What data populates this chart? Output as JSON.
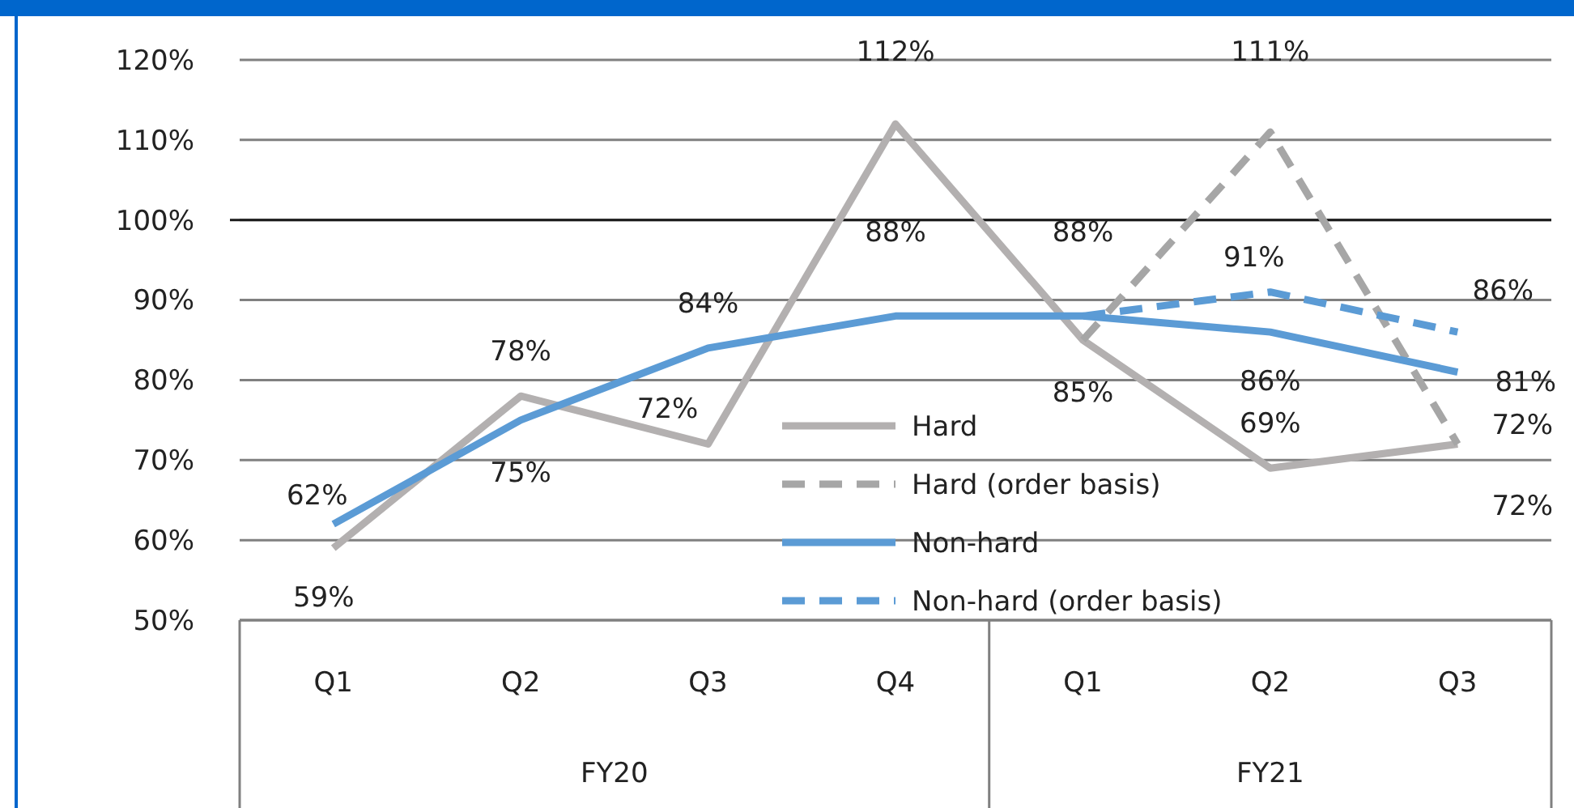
{
  "chart_data": {
    "type": "line",
    "categories": [
      "Q1",
      "Q2",
      "Q3",
      "Q4",
      "Q1",
      "Q2",
      "Q3"
    ],
    "annotations": [
      "FY20",
      "FY21"
    ],
    "ylim": [
      50,
      120
    ],
    "yticks": [
      {
        "value": 50,
        "label": "50%"
      },
      {
        "value": 60,
        "label": "60%"
      },
      {
        "value": 70,
        "label": "70%"
      },
      {
        "value": 80,
        "label": "80%"
      },
      {
        "value": 90,
        "label": "90%"
      },
      {
        "value": 100,
        "label": "100%"
      },
      {
        "value": 110,
        "label": "110%"
      },
      {
        "value": 120,
        "label": "120%"
      }
    ],
    "grid": "y",
    "legend": "bottom",
    "marker": "none",
    "ref_lines": [
      {
        "axis": "y",
        "value": 100,
        "color": "#1a1a1a"
      }
    ],
    "series": [
      {
        "name": "Hard",
        "color": "#b3b0b0",
        "line_style": "solid",
        "values": [
          59,
          78,
          72,
          112,
          85,
          69,
          72
        ],
        "value_labels": [
          "59%",
          "78%",
          "72%",
          "112%",
          "85%",
          "69%",
          "72%"
        ]
      },
      {
        "name": "Hard (order basis)",
        "color": "#a6a6a6",
        "line_style": "dashed",
        "values": [
          null,
          null,
          null,
          null,
          85,
          111,
          72
        ],
        "value_labels": [
          null,
          null,
          null,
          null,
          null,
          "111%",
          "72%"
        ]
      },
      {
        "name": "Non-hard",
        "color": "#5b9bd5",
        "line_style": "solid",
        "values": [
          62,
          75,
          84,
          88,
          88,
          86,
          81
        ],
        "value_labels": [
          "62%",
          "75%",
          "84%",
          "88%",
          "88%",
          "86%",
          "81%"
        ]
      },
      {
        "name": "Non-hard (order basis)",
        "color": "#5b9bd5",
        "line_style": "dashed",
        "values": [
          null,
          null,
          null,
          null,
          88,
          91,
          86
        ],
        "value_labels": [
          null,
          null,
          null,
          null,
          null,
          "91%",
          "86%"
        ]
      }
    ]
  }
}
